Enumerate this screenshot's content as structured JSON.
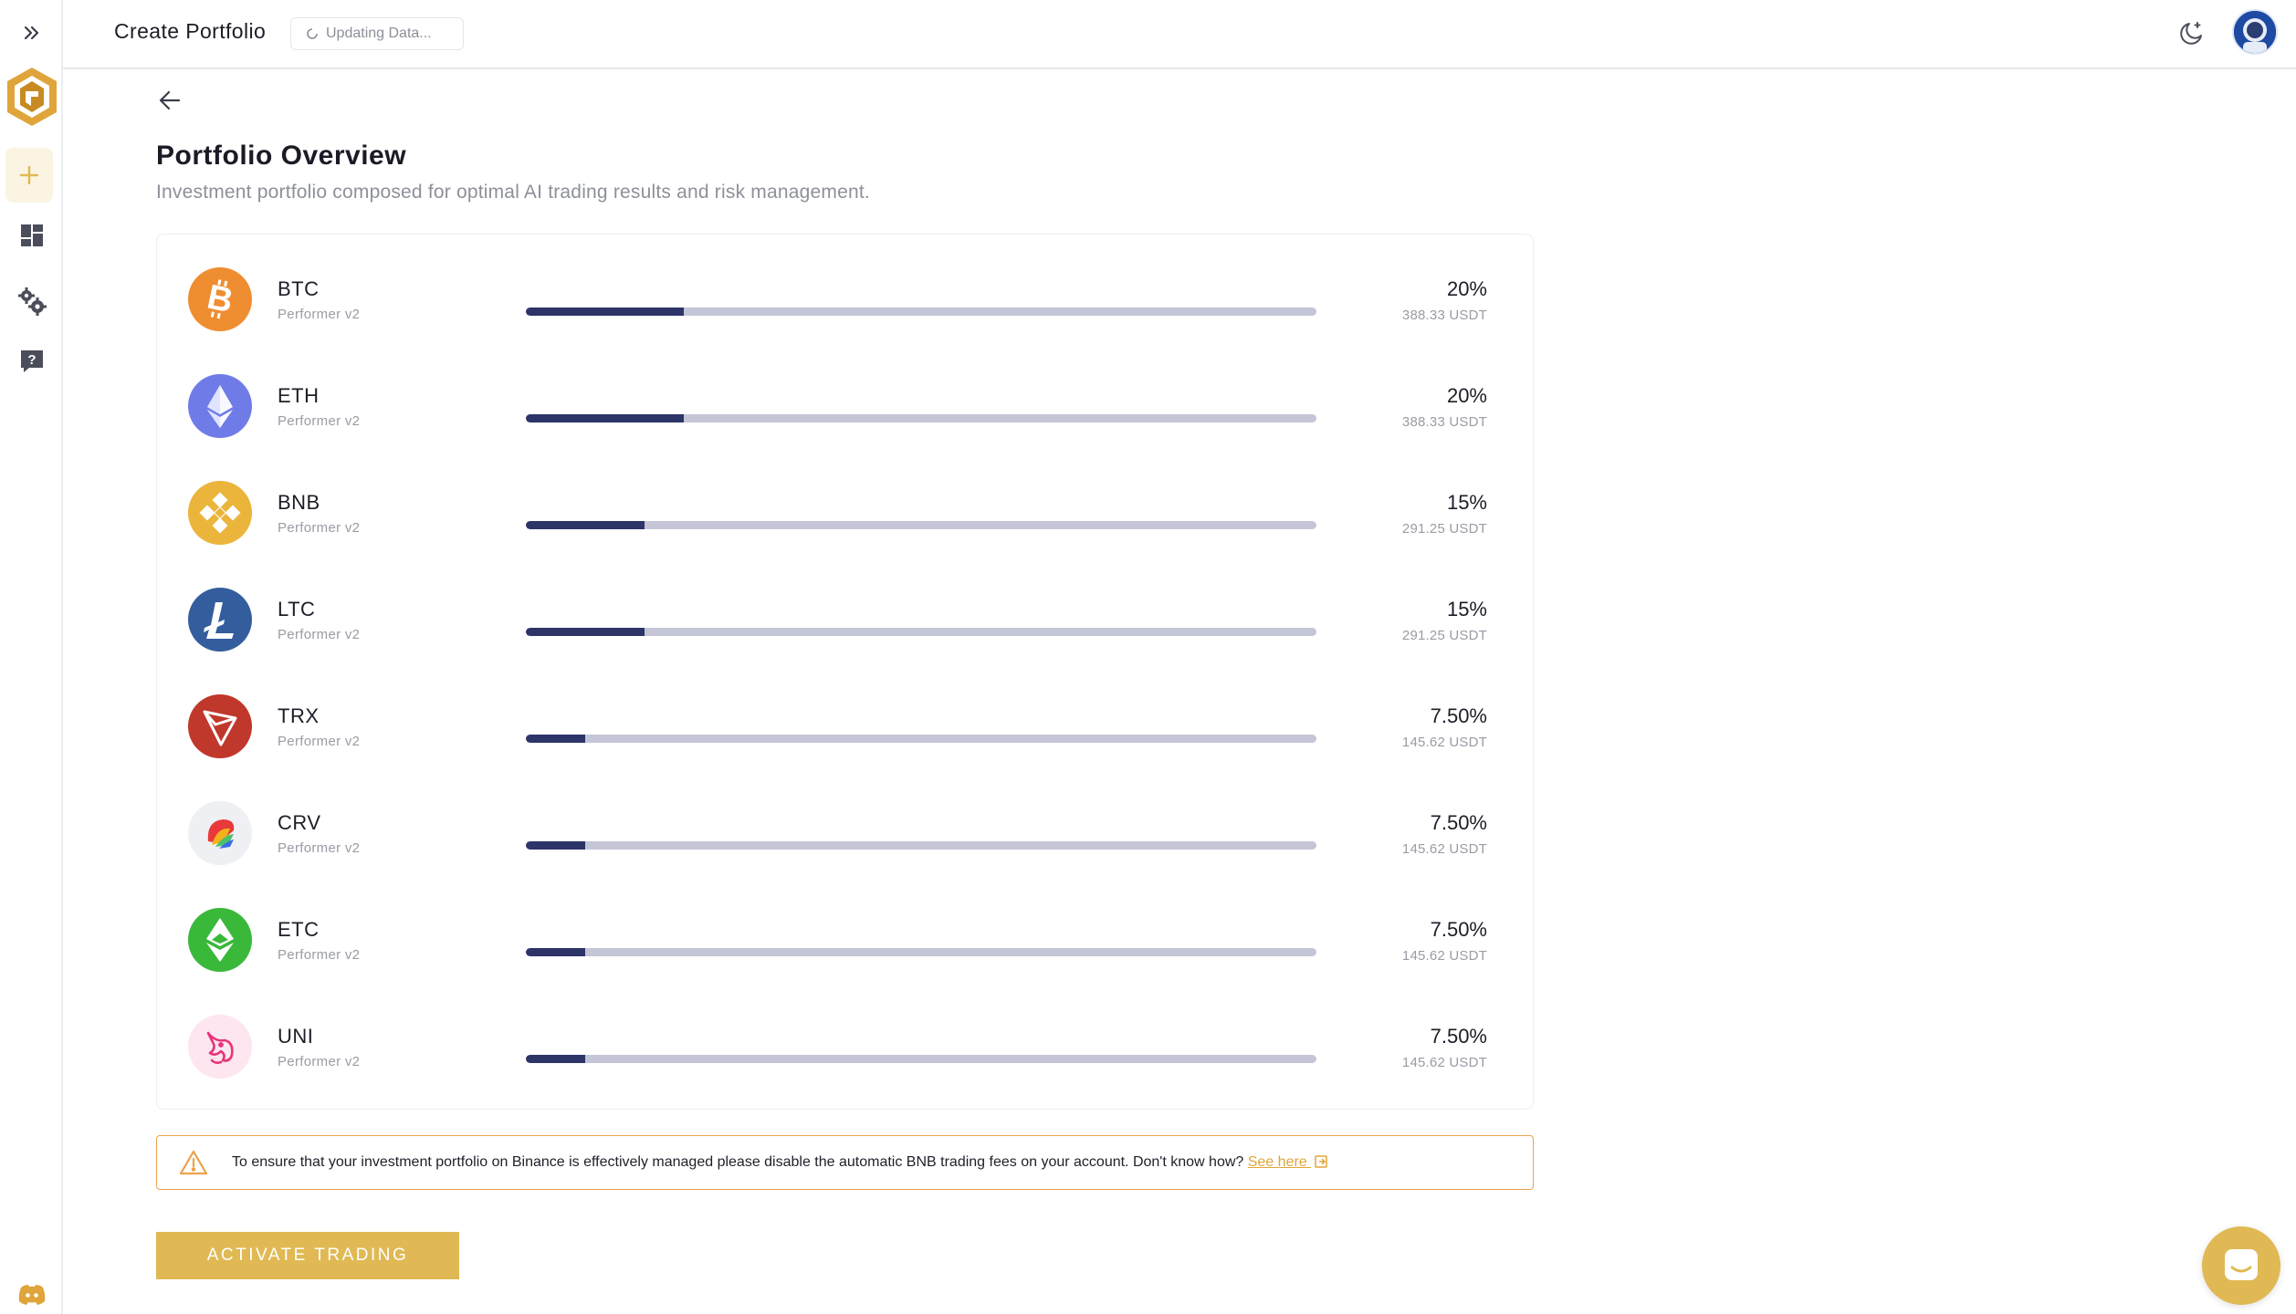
{
  "topbar": {
    "title": "Create Portfolio",
    "status": "Updating Data..."
  },
  "page": {
    "title": "Portfolio Overview",
    "subtitle": "Investment portfolio composed for optimal AI trading results and risk management."
  },
  "assets": [
    {
      "symbol": "BTC",
      "strategy": "Performer v2",
      "percent": "20%",
      "amount": "388.33 USDT",
      "share": 0.2,
      "color": "#ef8d31",
      "icon": "bitcoin-icon"
    },
    {
      "symbol": "ETH",
      "strategy": "Performer v2",
      "percent": "20%",
      "amount": "388.33 USDT",
      "share": 0.2,
      "color": "#6f7ce8",
      "icon": "ethereum-icon"
    },
    {
      "symbol": "BNB",
      "strategy": "Performer v2",
      "percent": "15%",
      "amount": "291.25 USDT",
      "share": 0.15,
      "color": "#ebb53c",
      "icon": "bnb-icon"
    },
    {
      "symbol": "LTC",
      "strategy": "Performer v2",
      "percent": "15%",
      "amount": "291.25 USDT",
      "share": 0.15,
      "color": "#345d9d",
      "icon": "litecoin-icon"
    },
    {
      "symbol": "TRX",
      "strategy": "Performer v2",
      "percent": "7.50%",
      "amount": "145.62 USDT",
      "share": 0.075,
      "color": "#c0372b",
      "icon": "tron-icon"
    },
    {
      "symbol": "CRV",
      "strategy": "Performer v2",
      "percent": "7.50%",
      "amount": "145.62 USDT",
      "share": 0.075,
      "color": "#eef0f4",
      "icon": "curve-icon"
    },
    {
      "symbol": "ETC",
      "strategy": "Performer v2",
      "percent": "7.50%",
      "amount": "145.62 USDT",
      "share": 0.075,
      "color": "#3ab83a",
      "icon": "ethereum-classic-icon"
    },
    {
      "symbol": "UNI",
      "strategy": "Performer v2",
      "percent": "7.50%",
      "amount": "145.62 USDT",
      "share": 0.075,
      "color": "#fde6ef",
      "icon": "uniswap-icon"
    }
  ],
  "notice": {
    "text": "To ensure that your investment portfolio on Binance is effectively managed please disable the automatic BNB trading fees on your account. Don't know how?",
    "link_label": "See here"
  },
  "actions": {
    "activate_label": "ACTIVATE TRADING"
  },
  "colors": {
    "accent": "#e0b954",
    "bar_fill": "#2c3468",
    "bar_track": "#c4c6d7",
    "warning": "#eca24a"
  }
}
